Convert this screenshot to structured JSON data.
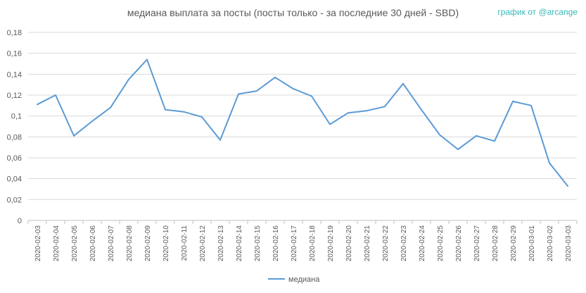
{
  "credit": "график от @arcange",
  "colors": {
    "series": "#5b9bd5",
    "grid": "#d9d9d9",
    "text": "#595959",
    "credit": "#3cb8b8"
  },
  "chart_data": {
    "type": "line",
    "title": "медиана выплата за посты  (посты только - за последние 30 дней - SBD)",
    "xlabel": "",
    "ylabel": "",
    "ylim": [
      0,
      0.18
    ],
    "yticks": [
      "0",
      "0,02",
      "0,04",
      "0,06",
      "0,08",
      "0,1",
      "0,12",
      "0,14",
      "0,16",
      "0,18"
    ],
    "grid": true,
    "legend_position": "bottom",
    "categories": [
      "2020-02-03",
      "2020-02-04",
      "2020-02-05",
      "2020-02-06",
      "2020-02-07",
      "2020-02-08",
      "2020-02-09",
      "2020-02-10",
      "2020-02-11",
      "2020-02-12",
      "2020-02-13",
      "2020-02-14",
      "2020-02-15",
      "2020-02-16",
      "2020-02-17",
      "2020-02-18",
      "2020-02-19",
      "2020-02-20",
      "2020-02-21",
      "2020-02-22",
      "2020-02-23",
      "2020-02-24",
      "2020-02-25",
      "2020-02-26",
      "2020-02-27",
      "2020-02-28",
      "2020-02-29",
      "2020-03-01",
      "2020-03-02",
      "2020-03-03"
    ],
    "series": [
      {
        "name": "медиана",
        "values": [
          0.111,
          0.12,
          0.081,
          0.095,
          0.108,
          0.135,
          0.154,
          0.106,
          0.104,
          0.099,
          0.077,
          0.121,
          0.124,
          0.137,
          0.126,
          0.119,
          0.092,
          0.103,
          0.105,
          0.109,
          0.131,
          0.106,
          0.082,
          0.068,
          0.081,
          0.076,
          0.114,
          0.11,
          0.055,
          0.033
        ]
      }
    ]
  }
}
